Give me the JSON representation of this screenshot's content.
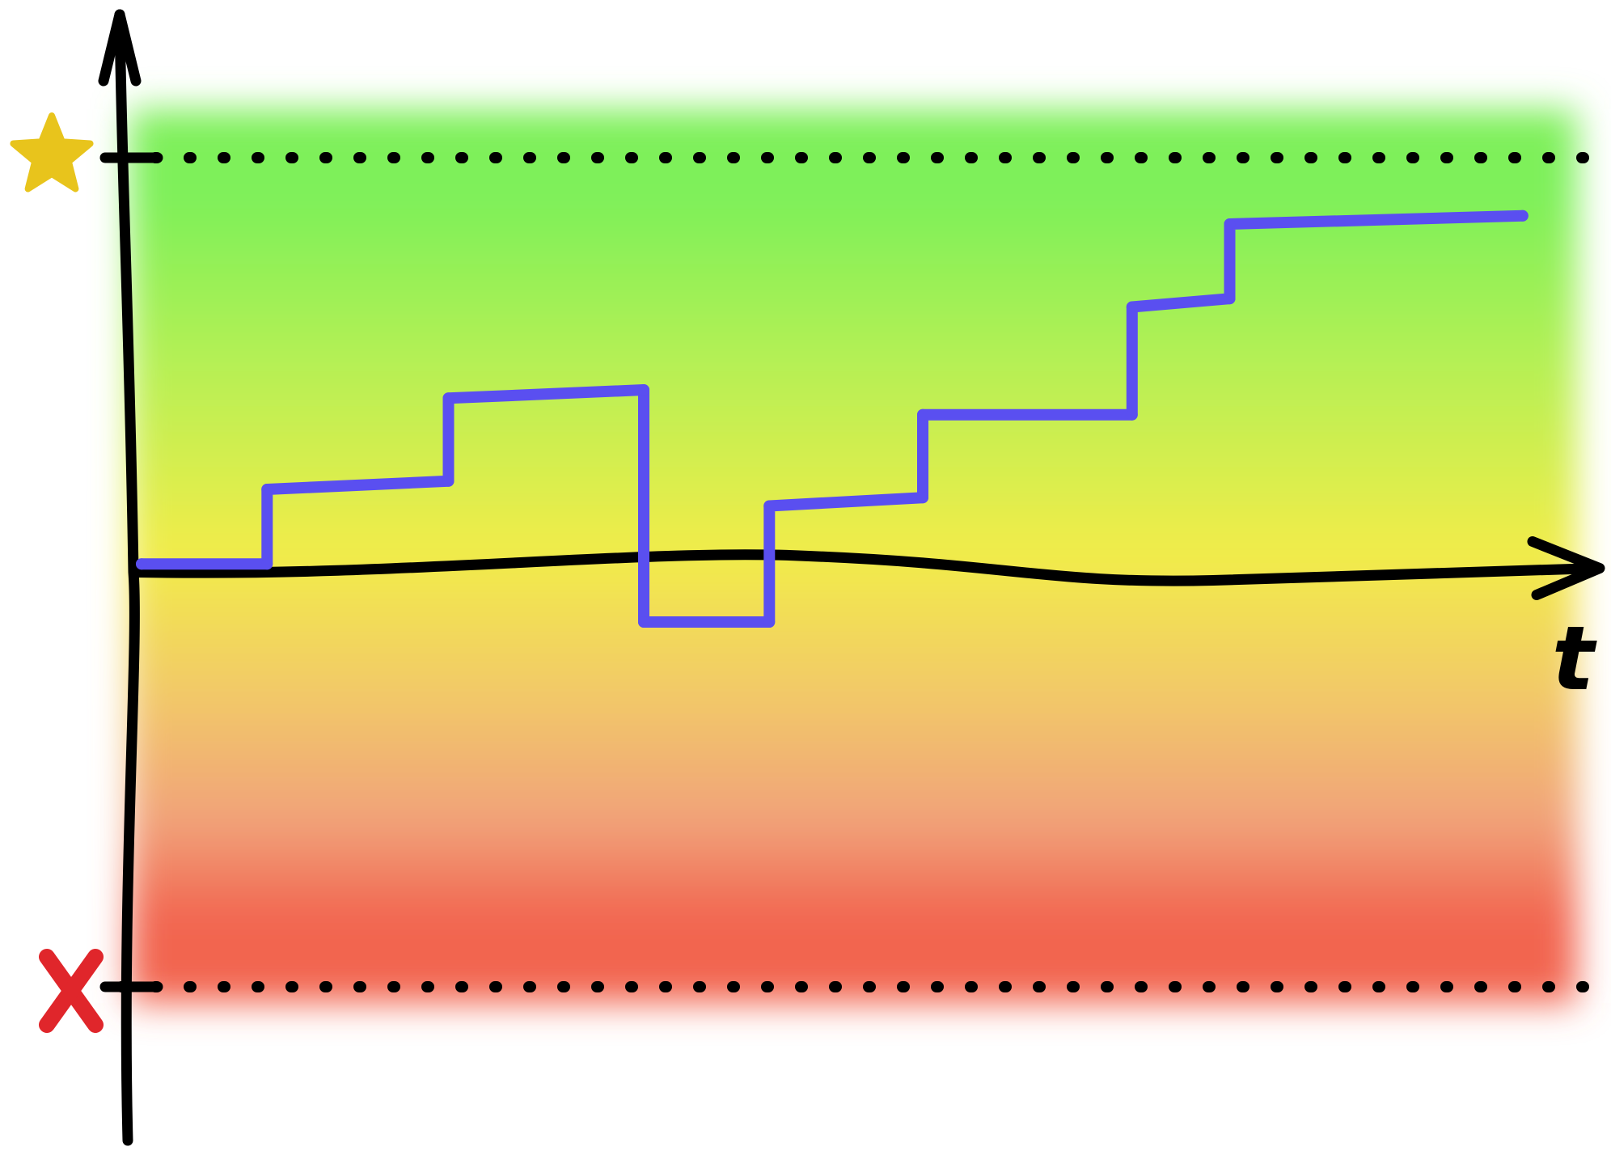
{
  "chart_data": {
    "type": "line",
    "step": true,
    "title": "",
    "xlabel": "t",
    "ylabel": "",
    "xlim": [
      0,
      10
    ],
    "ylim": [
      -5,
      5
    ],
    "grid": false,
    "legend": "none",
    "y_markers": [
      {
        "y": 5,
        "icon": "star-icon",
        "color": "#e8c41c",
        "line": "dotted"
      },
      {
        "y": -5,
        "icon": "cross-icon",
        "color": "#e0262b",
        "line": "dotted"
      }
    ],
    "background_bands": [
      {
        "y": 4.5,
        "color": "#7ef05a"
      },
      {
        "y": 2.5,
        "color": "#b6f054"
      },
      {
        "y": 0.2,
        "color": "#f2ec4a"
      },
      {
        "y": -1.5,
        "color": "#f2c869"
      },
      {
        "y": -3.0,
        "color": "#f1a27a"
      },
      {
        "y": -4.2,
        "color": "#f26550"
      }
    ],
    "series": [
      {
        "color": "#5a4ff0",
        "points": [
          [
            0,
            0.1
          ],
          [
            0.9,
            0.1
          ],
          [
            0.9,
            1.0
          ],
          [
            2.2,
            1.1
          ],
          [
            2.2,
            2.1
          ],
          [
            3.6,
            2.2
          ],
          [
            3.6,
            -0.6
          ],
          [
            4.5,
            -0.6
          ],
          [
            4.5,
            0.8
          ],
          [
            5.6,
            0.9
          ],
          [
            5.6,
            1.9
          ],
          [
            7.1,
            1.9
          ],
          [
            7.1,
            3.2
          ],
          [
            7.8,
            3.3
          ],
          [
            7.8,
            4.2
          ],
          [
            9.9,
            4.3
          ]
        ]
      }
    ]
  }
}
